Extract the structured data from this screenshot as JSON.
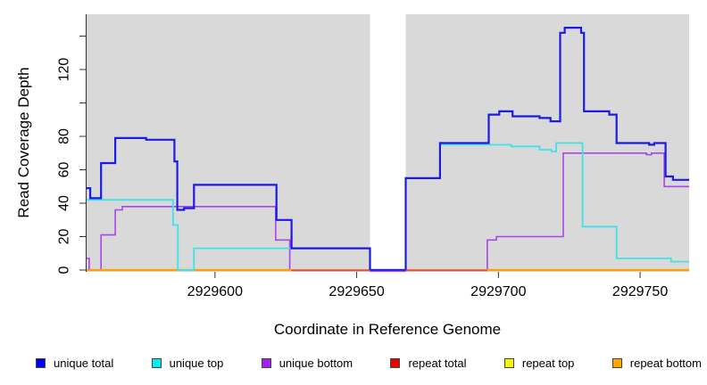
{
  "figure": {
    "y_axis": {
      "title": "Read Coverage Depth",
      "ticks": [
        {
          "value": 0,
          "label": "0"
        },
        {
          "value": 20,
          "label": "20"
        },
        {
          "value": 40,
          "label": "40"
        },
        {
          "value": 60,
          "label": "60"
        },
        {
          "value": 80,
          "label": "80"
        },
        {
          "value": 100,
          "label": ""
        },
        {
          "value": 120,
          "label": "120"
        },
        {
          "value": 140,
          "label": ""
        }
      ]
    },
    "x_axis": {
      "title": "Coordinate in Reference Genome",
      "ticks": [
        {
          "value": 2929600,
          "label": "2929600"
        },
        {
          "value": 2929650,
          "label": "2929650"
        },
        {
          "value": 2929700,
          "label": "2929700"
        },
        {
          "value": 2929750,
          "label": "2929750"
        }
      ]
    },
    "legend": [
      {
        "name": "unique total",
        "color": "#0000f0"
      },
      {
        "name": "unique top",
        "color": "#00eeee"
      },
      {
        "name": "unique bottom",
        "color": "#a020f0"
      },
      {
        "name": "repeat total",
        "color": "#ee0000"
      },
      {
        "name": "repeat top",
        "color": "#f5f500"
      },
      {
        "name": "repeat bottom",
        "color": "#ffa500"
      }
    ]
  },
  "chart_data": {
    "type": "line",
    "subtype": "step-after-coverage",
    "title": "",
    "xlabel": "Coordinate in Reference Genome",
    "ylabel": "Read Coverage Depth",
    "x_range": [
      2929554.7,
      2929767.3
    ],
    "y_range": [
      0,
      153
    ],
    "panel_background": "#d9d9d9",
    "gap_region": {
      "from": 2929654.7,
      "to": 2929667.3
    },
    "grid": false,
    "legend_position": "bottom",
    "series": [
      {
        "name": "repeat total",
        "color": "#ee0000",
        "width": 1.4,
        "points": [
          [
            2929554.7,
            0
          ]
        ]
      },
      {
        "name": "repeat top",
        "color": "#f5f500",
        "width": 1.4,
        "points": [
          [
            2929554.7,
            0
          ]
        ]
      },
      {
        "name": "unique bottom",
        "color": "#aa44ee",
        "width": 1.6,
        "points": [
          [
            2929554.7,
            7
          ],
          [
            2929555.6,
            0
          ],
          [
            2929559.8,
            21
          ],
          [
            2929564.8,
            36
          ],
          [
            2929567.3,
            38
          ],
          [
            2929621.4,
            18
          ],
          [
            2929626.4,
            0
          ],
          [
            2929696.1,
            18
          ],
          [
            2929699.3,
            20
          ],
          [
            2929722.9,
            70
          ],
          [
            2929752.2,
            69
          ],
          [
            2929754.0,
            70
          ],
          [
            2929758.5,
            50
          ]
        ]
      },
      {
        "name": "repeat bottom",
        "color": "#ff9f00",
        "width": 2.2,
        "points": [
          [
            2929554.7,
            0
          ]
        ]
      },
      {
        "name": "unique top",
        "color": "#3fe2e8",
        "width": 1.8,
        "points": [
          [
            2929554.7,
            42
          ],
          [
            2929585.2,
            27
          ],
          [
            2929586.9,
            0
          ],
          [
            2929592.6,
            13
          ],
          [
            2929654.7,
            0
          ],
          [
            2929667.3,
            55
          ],
          [
            2929679.4,
            75
          ],
          [
            2929704.5,
            74
          ],
          [
            2929714.5,
            72
          ],
          [
            2929718.7,
            71
          ],
          [
            2929720.4,
            76
          ],
          [
            2929729.7,
            26
          ],
          [
            2929741.7,
            7
          ],
          [
            2929760.9,
            5
          ]
        ]
      },
      {
        "name": "unique total",
        "color": "#1b1be4",
        "width": 2.2,
        "points": [
          [
            2929554.7,
            49
          ],
          [
            2929556.0,
            43
          ],
          [
            2929559.8,
            64
          ],
          [
            2929564.8,
            79
          ],
          [
            2929575.7,
            78
          ],
          [
            2929585.7,
            65
          ],
          [
            2929586.7,
            36
          ],
          [
            2929589.1,
            37
          ],
          [
            2929592.6,
            51
          ],
          [
            2929621.7,
            30
          ],
          [
            2929627.0,
            13
          ],
          [
            2929654.7,
            0
          ],
          [
            2929667.3,
            55
          ],
          [
            2929679.4,
            76
          ],
          [
            2929696.6,
            93
          ],
          [
            2929700.3,
            95
          ],
          [
            2929705.0,
            92
          ],
          [
            2929714.5,
            91
          ],
          [
            2929718.4,
            89
          ],
          [
            2929721.8,
            142
          ],
          [
            2929723.4,
            145
          ],
          [
            2929729.2,
            142
          ],
          [
            2929730.2,
            95
          ],
          [
            2929739.1,
            93
          ],
          [
            2929741.7,
            76
          ],
          [
            2929753.2,
            75
          ],
          [
            2929755.0,
            76
          ],
          [
            2929759.0,
            56
          ],
          [
            2929761.6,
            54
          ]
        ]
      }
    ],
    "baseline_overlays": [
      {
        "from": 2929627.0,
        "to": 2929654.7,
        "color": "#d34a6e",
        "dy": 0.4,
        "width": 1.6
      },
      {
        "from": 2929667.3,
        "to": 2929696.1,
        "color": "#d34a6e",
        "dy": 0.4,
        "width": 1.6
      },
      {
        "from": 2929654.7,
        "to": 2929667.3,
        "color": "#aa44ee",
        "dy": 1.4,
        "width": 1.4
      }
    ]
  }
}
